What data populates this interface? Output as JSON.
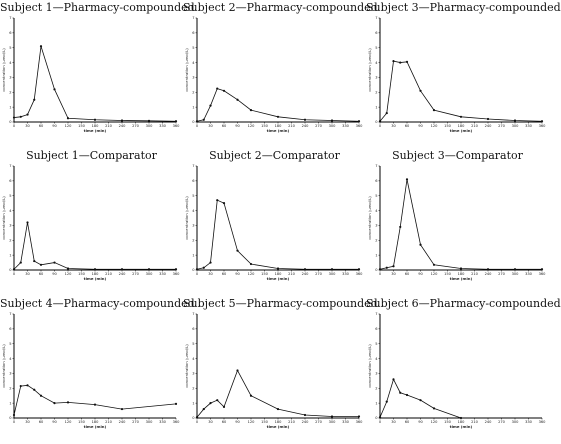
{
  "chart_data": [
    {
      "type": "line",
      "title": "Subject 1—Pharmacy-compounded",
      "xlabel": "time (min)",
      "ylabel": "concentration (µmol/L)",
      "xlim": [
        0,
        360
      ],
      "ylim": [
        0,
        7
      ],
      "xticks": [
        0,
        30,
        60,
        90,
        120,
        150,
        180,
        210,
        240,
        270,
        300,
        330,
        360
      ],
      "yticks": [
        0,
        1,
        2,
        3,
        4,
        5,
        6,
        7
      ],
      "x": [
        0,
        15,
        30,
        45,
        60,
        90,
        120,
        180,
        240,
        300,
        360
      ],
      "y": [
        0.3,
        0.35,
        0.5,
        1.5,
        5.1,
        2.2,
        0.25,
        0.15,
        0.1,
        0.08,
        0.05
      ]
    },
    {
      "type": "line",
      "title": "Subject 2—Pharmacy-compounded",
      "xlabel": "time (min)",
      "ylabel": "concentration (µmol/L)",
      "xlim": [
        0,
        360
      ],
      "ylim": [
        0,
        7
      ],
      "xticks": [
        0,
        30,
        60,
        90,
        120,
        150,
        180,
        210,
        240,
        270,
        300,
        330,
        360
      ],
      "yticks": [
        0,
        1,
        2,
        3,
        4,
        5,
        6,
        7
      ],
      "x": [
        0,
        15,
        30,
        45,
        60,
        90,
        120,
        180,
        240,
        300,
        360
      ],
      "y": [
        0.05,
        0.15,
        1.1,
        2.25,
        2.1,
        1.5,
        0.8,
        0.35,
        0.15,
        0.1,
        0.05
      ]
    },
    {
      "type": "line",
      "title": "Subject 3—Pharmacy-compounded",
      "xlabel": "time (min)",
      "ylabel": "concentration (µmol/L)",
      "xlim": [
        0,
        360
      ],
      "ylim": [
        0,
        7
      ],
      "xticks": [
        0,
        30,
        60,
        90,
        120,
        150,
        180,
        210,
        240,
        270,
        300,
        330,
        360
      ],
      "yticks": [
        0,
        1,
        2,
        3,
        4,
        5,
        6,
        7
      ],
      "x": [
        0,
        15,
        30,
        45,
        60,
        90,
        120,
        180,
        240,
        300,
        360
      ],
      "y": [
        0.05,
        0.6,
        4.1,
        4.0,
        4.05,
        2.1,
        0.8,
        0.35,
        0.2,
        0.1,
        0.05
      ]
    },
    {
      "type": "line",
      "title": "Subject 1—Comparator",
      "xlabel": "time (min)",
      "ylabel": "concentration (µmol/L)",
      "xlim": [
        0,
        360
      ],
      "ylim": [
        0,
        7
      ],
      "xticks": [
        0,
        30,
        60,
        90,
        120,
        150,
        180,
        210,
        240,
        270,
        300,
        330,
        360
      ],
      "yticks": [
        0,
        1,
        2,
        3,
        4,
        5,
        6,
        7
      ],
      "x": [
        0,
        15,
        30,
        45,
        60,
        90,
        120,
        180,
        240,
        300,
        360
      ],
      "y": [
        0.05,
        0.5,
        3.2,
        0.6,
        0.35,
        0.5,
        0.1,
        0.05,
        0.05,
        0.05,
        0.05
      ]
    },
    {
      "type": "line",
      "title": "Subject 2—Comparator",
      "xlabel": "time (min)",
      "ylabel": "concentration (µmol/L)",
      "xlim": [
        0,
        360
      ],
      "ylim": [
        0,
        7
      ],
      "xticks": [
        0,
        30,
        60,
        90,
        120,
        150,
        180,
        210,
        240,
        270,
        300,
        330,
        360
      ],
      "yticks": [
        0,
        1,
        2,
        3,
        4,
        5,
        6,
        7
      ],
      "x": [
        0,
        15,
        30,
        45,
        60,
        90,
        120,
        180,
        240,
        300,
        360
      ],
      "y": [
        0.05,
        0.15,
        0.5,
        4.7,
        4.5,
        1.3,
        0.4,
        0.1,
        0.05,
        0.05,
        0.05
      ]
    },
    {
      "type": "line",
      "title": "Subject 3—Comparator",
      "xlabel": "time (min)",
      "ylabel": "concentration (µmol/L)",
      "xlim": [
        0,
        360
      ],
      "ylim": [
        0,
        7
      ],
      "xticks": [
        0,
        30,
        60,
        90,
        120,
        150,
        180,
        210,
        240,
        270,
        300,
        330,
        360
      ],
      "yticks": [
        0,
        1,
        2,
        3,
        4,
        5,
        6,
        7
      ],
      "x": [
        0,
        15,
        30,
        45,
        60,
        90,
        120,
        180,
        240,
        300,
        360
      ],
      "y": [
        0.05,
        0.15,
        0.25,
        2.9,
        6.1,
        1.7,
        0.35,
        0.1,
        0.05,
        0.05,
        0.05
      ]
    },
    {
      "type": "line",
      "title": "Subject 4—Pharmacy-compounded",
      "xlabel": "time (min)",
      "ylabel": "concentration (µmol/L)",
      "xlim": [
        0,
        360
      ],
      "ylim": [
        0,
        7
      ],
      "xticks": [
        0,
        30,
        60,
        90,
        120,
        150,
        180,
        210,
        240,
        270,
        300,
        330,
        360
      ],
      "yticks": [
        0,
        1,
        2,
        3,
        4,
        5,
        6,
        7
      ],
      "x": [
        0,
        15,
        30,
        45,
        60,
        90,
        120,
        180,
        240,
        360
      ],
      "y": [
        0.2,
        2.15,
        2.2,
        1.9,
        1.5,
        1.0,
        1.05,
        0.9,
        0.6,
        0.95
      ]
    },
    {
      "type": "line",
      "title": "Subject 5—Pharmacy-compounded",
      "xlabel": "time (min)",
      "ylabel": "concentration (µmol/L)",
      "xlim": [
        0,
        360
      ],
      "ylim": [
        0,
        7
      ],
      "xticks": [
        0,
        30,
        60,
        90,
        120,
        150,
        180,
        210,
        240,
        270,
        300,
        330,
        360
      ],
      "yticks": [
        0,
        1,
        2,
        3,
        4,
        5,
        6,
        7
      ],
      "x": [
        0,
        15,
        30,
        45,
        60,
        90,
        120,
        180,
        240,
        300,
        360
      ],
      "y": [
        0.05,
        0.6,
        1.0,
        1.2,
        0.75,
        3.2,
        1.5,
        0.6,
        0.2,
        0.1,
        0.1
      ]
    },
    {
      "type": "line",
      "title": "Subject 6—Pharmacy-compounded",
      "xlabel": "time (min)",
      "ylabel": "concentration (µmol/L)",
      "xlim": [
        0,
        360
      ],
      "ylim": [
        0,
        7
      ],
      "xticks": [
        0,
        30,
        60,
        90,
        120,
        150,
        180,
        210,
        240,
        270,
        300,
        330,
        360
      ],
      "yticks": [
        0,
        1,
        2,
        3,
        4,
        5,
        6,
        7
      ],
      "x": [
        0,
        15,
        30,
        45,
        60,
        90,
        120,
        180
      ],
      "y": [
        0.05,
        1.1,
        2.6,
        1.7,
        1.55,
        1.2,
        0.65,
        0.0
      ]
    }
  ]
}
